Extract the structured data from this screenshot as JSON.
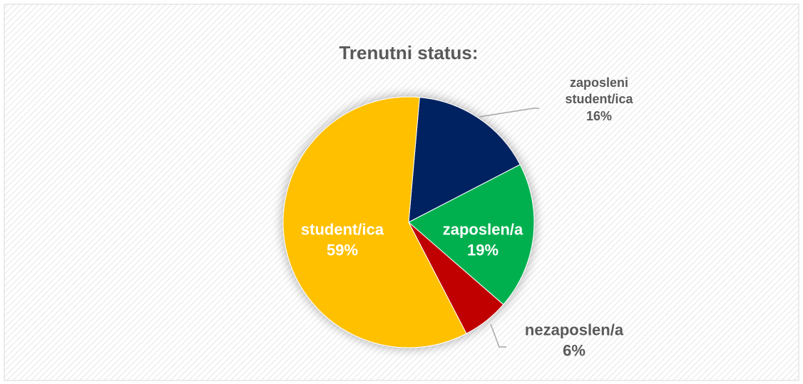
{
  "chart_data": {
    "type": "pie",
    "title": "Trenutni status:",
    "categories": [
      "zaposleni student/ica",
      "zaposlen/a",
      "nezaposlen/a",
      "student/ica"
    ],
    "values": [
      16,
      19,
      6,
      59
    ],
    "value_labels": [
      "16%",
      "19%",
      "6%",
      "59%"
    ],
    "colors": [
      "#002060",
      "#00b050",
      "#c00000",
      "#ffc000"
    ]
  }
}
